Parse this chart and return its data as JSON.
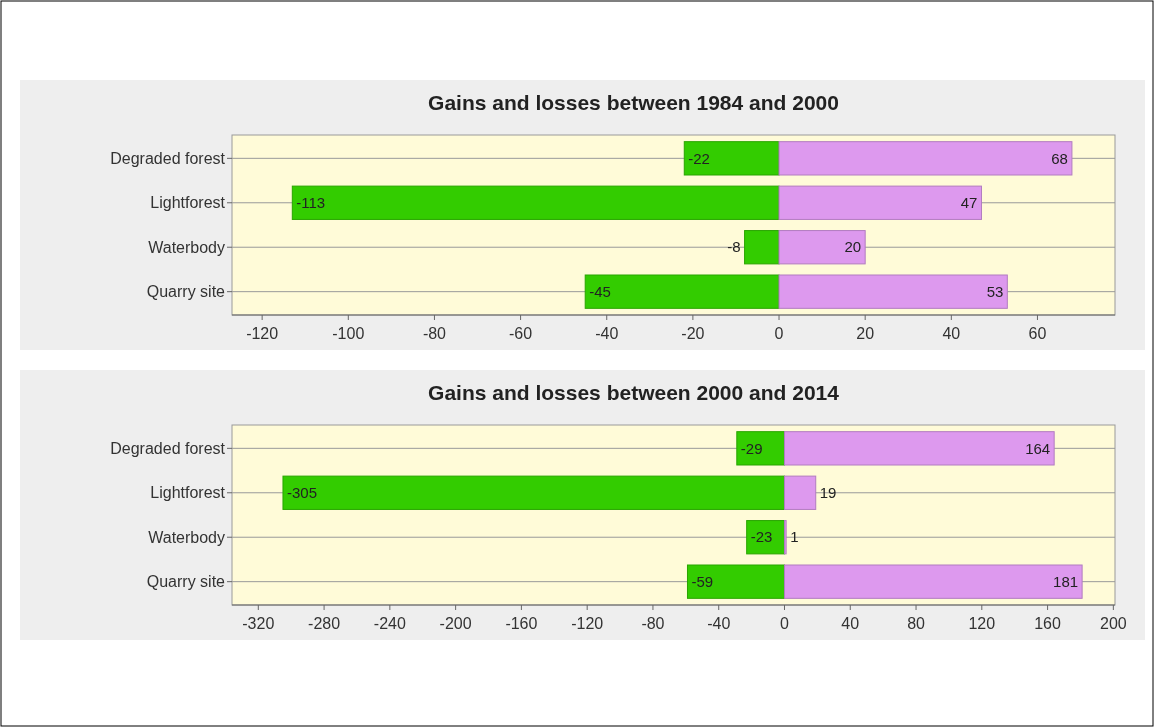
{
  "chart_data": [
    {
      "type": "bar",
      "orientation": "horizontal",
      "stacked": true,
      "title": "Gains and losses between 1984 and 2000",
      "categories": [
        "Degraded forest",
        "Lightforest",
        "Waterbody",
        "Quarry site"
      ],
      "series": [
        {
          "color": "#33cc00",
          "values": [
            -22,
            -113,
            -8,
            -45
          ]
        },
        {
          "color": "#dd99ee",
          "values": [
            68,
            47,
            20,
            53
          ]
        }
      ],
      "xlim": [
        -127,
        78
      ],
      "xticks": [
        -120,
        -100,
        -80,
        -60,
        -40,
        -20,
        0,
        20,
        40,
        60
      ],
      "grid": "y",
      "data_labels": true
    },
    {
      "type": "bar",
      "orientation": "horizontal",
      "stacked": true,
      "title": "Gains and losses between 2000 and 2014",
      "categories": [
        "Degraded forest",
        "Lightforest",
        "Waterbody",
        "Quarry site"
      ],
      "series": [
        {
          "color": "#33cc00",
          "values": [
            -29,
            -305,
            -23,
            -59
          ]
        },
        {
          "color": "#dd99ee",
          "values": [
            164,
            19,
            1,
            181
          ]
        }
      ],
      "xlim": [
        -336,
        201
      ],
      "xticks": [
        -320,
        -280,
        -240,
        -200,
        -160,
        -120,
        -80,
        -40,
        0,
        40,
        80,
        120,
        160,
        200
      ],
      "grid": "y",
      "data_labels": true
    }
  ]
}
